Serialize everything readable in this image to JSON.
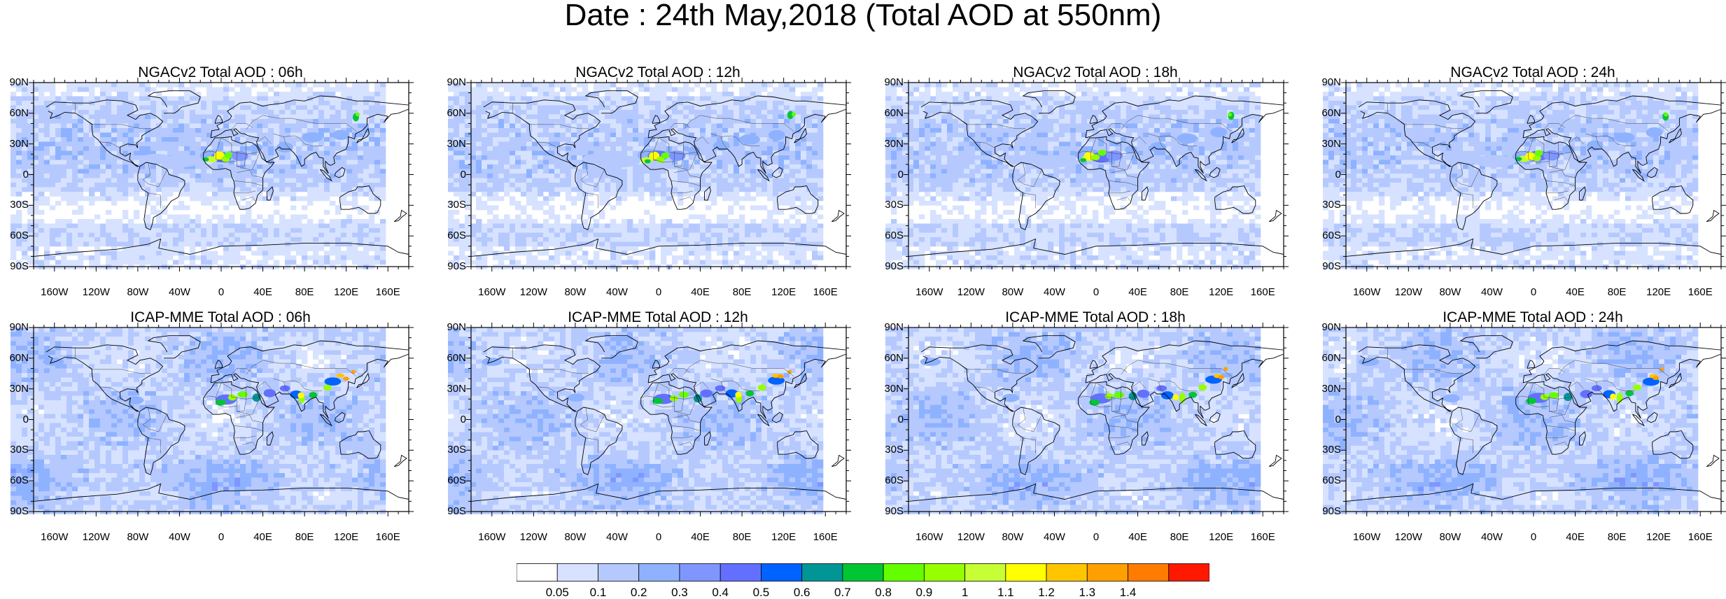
{
  "title": "Date : 24th May,2018 (Total AOD at 550nm)",
  "panels": [
    {
      "title": "NGACv2 Total AOD : 06h",
      "model": "NGACv2",
      "hour": "06h"
    },
    {
      "title": "NGACv2 Total AOD : 12h",
      "model": "NGACv2",
      "hour": "12h"
    },
    {
      "title": "NGACv2 Total AOD : 18h",
      "model": "NGACv2",
      "hour": "18h"
    },
    {
      "title": "NGACv2 Total AOD : 24h",
      "model": "NGACv2",
      "hour": "24h"
    },
    {
      "title": "ICAP-MME Total AOD : 06h",
      "model": "ICAP-MME",
      "hour": "06h"
    },
    {
      "title": "ICAP-MME Total AOD : 12h",
      "model": "ICAP-MME",
      "hour": "12h"
    },
    {
      "title": "ICAP-MME Total AOD : 18h",
      "model": "ICAP-MME",
      "hour": "18h"
    },
    {
      "title": "ICAP-MME Total AOD : 24h",
      "model": "ICAP-MME",
      "hour": "24h"
    }
  ],
  "lat_ticks": [
    "90N",
    "60N",
    "30N",
    "0",
    "30S",
    "60S",
    "90S"
  ],
  "lon_ticks": [
    "160W",
    "120W",
    "80W",
    "40W",
    "0",
    "40E",
    "80E",
    "120E",
    "160E"
  ],
  "lon_values": [
    -160,
    -120,
    -80,
    -40,
    0,
    40,
    80,
    120,
    160
  ],
  "lat_values": [
    90,
    60,
    30,
    0,
    -30,
    -60,
    -90
  ],
  "colorbar": {
    "colors": [
      "#ffffff",
      "#d6e2ff",
      "#b5c9ff",
      "#8eb2ff",
      "#7f96ff",
      "#6370ff",
      "#0063ff",
      "#009696",
      "#00c633",
      "#63ff00",
      "#96ff00",
      "#c6ff33",
      "#ffff00",
      "#ffc600",
      "#ffa000",
      "#ff7c00",
      "#ff1900"
    ],
    "levels": [
      "0.05",
      "0.1",
      "0.2",
      "0.3",
      "0.4",
      "0.5",
      "0.6",
      "0.7",
      "0.8",
      "0.9",
      "1",
      "1.1",
      "1.2",
      "1.3",
      "1.4"
    ]
  }
}
